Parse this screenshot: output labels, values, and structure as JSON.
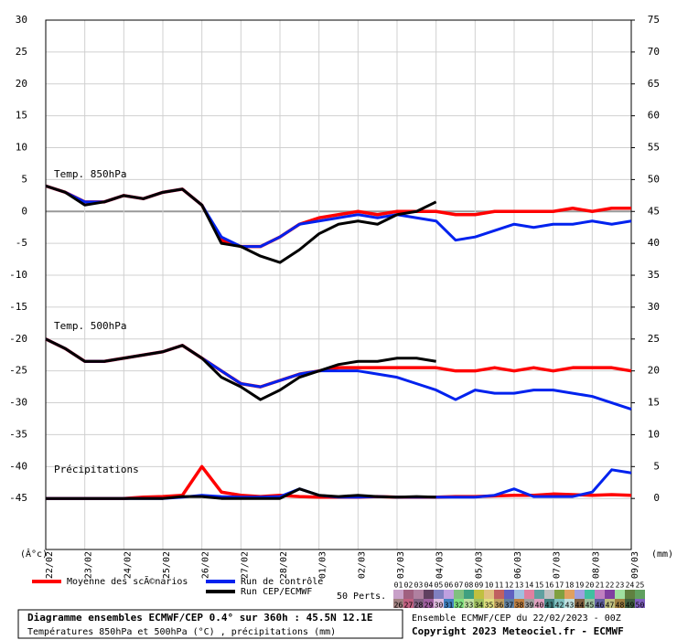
{
  "chart_data": {
    "type": "line",
    "panel_labels": [
      "Temp. 850hPa",
      "Temp. 500hPa",
      "Précipitations"
    ],
    "x": [
      0,
      0.5,
      1,
      1.5,
      2,
      2.5,
      3,
      3.5,
      4,
      4.5,
      5,
      5.5,
      6,
      6.5,
      7,
      7.5,
      8,
      8.5,
      9,
      9.5,
      10,
      10.5,
      11,
      11.5,
      12,
      12.5,
      13,
      13.5,
      14,
      14.5,
      15
    ],
    "xlim": [
      0,
      15
    ],
    "xticks": [
      {
        "value": 0,
        "label": "22/02"
      },
      {
        "value": 1,
        "label": "23/02"
      },
      {
        "value": 2,
        "label": "24/02"
      },
      {
        "value": 3,
        "label": "25/02"
      },
      {
        "value": 4,
        "label": "26/02"
      },
      {
        "value": 5,
        "label": "27/02"
      },
      {
        "value": 6,
        "label": "28/02"
      },
      {
        "value": 7,
        "label": "01/03"
      },
      {
        "value": 8,
        "label": "02/03"
      },
      {
        "value": 9,
        "label": "03/03"
      },
      {
        "value": 10,
        "label": "04/03"
      },
      {
        "value": 11,
        "label": "05/03"
      },
      {
        "value": 12,
        "label": "06/03"
      },
      {
        "value": 13,
        "label": "07/03"
      },
      {
        "value": 14,
        "label": "08/03"
      },
      {
        "value": 15,
        "label": "09/03"
      }
    ],
    "ylim": [
      -53,
      30
    ],
    "yticks": [
      30,
      25,
      20,
      15,
      10,
      5,
      0,
      -5,
      -10,
      -15,
      -20,
      -25,
      -30,
      -35,
      -40,
      -45
    ],
    "y2lim": [
      -8,
      75
    ],
    "y2ticks": [
      75,
      70,
      65,
      60,
      55,
      50,
      45,
      40,
      35,
      30,
      25,
      20,
      15,
      10,
      5,
      0
    ],
    "ylabel": "(Â°c)",
    "y2label": "(mm)",
    "grid": true,
    "series": [
      {
        "name": "Moyenne des scÃ©narios",
        "color": "#ff0000",
        "t850": [
          4,
          3,
          1.5,
          1.5,
          2.5,
          2,
          3,
          3.5,
          1,
          -4.5,
          -5.5,
          -5.5,
          -4,
          -2,
          -1,
          -0.5,
          0,
          -0.5,
          0,
          0,
          0,
          -0.5,
          -0.5,
          0,
          0,
          0,
          0,
          0.5,
          0,
          0.5,
          0.5
        ],
        "t500": [
          -20,
          -21.5,
          -23.5,
          -23.5,
          -23,
          -22.5,
          -22,
          -21,
          -23,
          -25,
          -27,
          -27.5,
          -26.5,
          -25.5,
          -25,
          -24.5,
          -24.5,
          -24.5,
          -24.5,
          -24.5,
          -24.5,
          -25,
          -25,
          -24.5,
          -25,
          -24.5,
          -25,
          -24.5,
          -24.5,
          -24.5,
          -25
        ],
        "precip": [
          0,
          0,
          0,
          0,
          0,
          0.2,
          0.3,
          0.5,
          5,
          1,
          0.5,
          0.3,
          0.5,
          0.3,
          0.2,
          0.2,
          0.2,
          0.3,
          0.2,
          0.2,
          0.2,
          0.3,
          0.3,
          0.4,
          0.5,
          0.5,
          0.7,
          0.6,
          0.5,
          0.6,
          0.5
        ]
      },
      {
        "name": "Run de contrôle",
        "color": "#0022ee",
        "t850": [
          4,
          3,
          1.5,
          1.5,
          2.5,
          2,
          3,
          3.5,
          1,
          -4,
          -5.5,
          -5.5,
          -4,
          -2,
          -1.5,
          -1,
          -0.5,
          -1,
          -0.5,
          -1,
          -1.5,
          -4.5,
          -4,
          -3,
          -2,
          -2.5,
          -2,
          -2,
          -1.5,
          -2,
          -1.5
        ],
        "t500": [
          -20,
          -21.5,
          -23.5,
          -23.5,
          -23,
          -22.5,
          -22,
          -21,
          -23,
          -25,
          -27,
          -27.5,
          -26.5,
          -25.5,
          -25,
          -25,
          -25,
          -25.5,
          -26,
          -27,
          -28,
          -29.5,
          -28,
          -28.5,
          -28.5,
          -28,
          -28,
          -28.5,
          -29,
          -30,
          -31
        ],
        "precip": [
          0,
          0,
          0,
          0,
          0,
          0,
          0,
          0.2,
          0.5,
          0.3,
          0.2,
          0.2,
          0.3,
          1.5,
          0.5,
          0.2,
          0.2,
          0.3,
          0.2,
          0.2,
          0.2,
          0.2,
          0.2,
          0.5,
          1.5,
          0.3,
          0.3,
          0.3,
          1,
          4.5,
          4
        ]
      },
      {
        "name": "Run CEP/ECMWF",
        "color": "#000000",
        "t850": [
          4,
          3,
          1,
          1.5,
          2.5,
          2,
          3,
          3.5,
          1,
          -5,
          -5.5,
          -7,
          -8,
          -6,
          -3.5,
          -2,
          -1.5,
          -2,
          -0.5,
          0,
          1.5,
          null,
          null,
          null,
          null,
          null,
          null,
          null,
          null,
          null,
          null
        ],
        "t500": [
          -20,
          -21.5,
          -23.5,
          -23.5,
          -23,
          -22.5,
          -22,
          -21,
          -23,
          -26,
          -27.5,
          -29.5,
          -28,
          -26,
          -25,
          -24,
          -23.5,
          -23.5,
          -23,
          -23,
          -23.5,
          null,
          null,
          null,
          null,
          null,
          null,
          null,
          null,
          null,
          null
        ],
        "precip": [
          0,
          0,
          0,
          0,
          0,
          0,
          0,
          0.3,
          0.3,
          0,
          0,
          0,
          0,
          1.5,
          0.5,
          0.3,
          0.5,
          0.3,
          0.2,
          0.3,
          0.2,
          null,
          null,
          null,
          null,
          null,
          null,
          null,
          null,
          null,
          null
        ]
      }
    ],
    "perturbations_label": "50 Perts.",
    "perturbations": {
      "labels": [
        "01",
        "02",
        "03",
        "04",
        "05",
        "06",
        "07",
        "08",
        "09",
        "10",
        "11",
        "12",
        "13",
        "14",
        "15",
        "16",
        "17",
        "18",
        "19",
        "20",
        "21",
        "22",
        "23",
        "24",
        "25",
        "26",
        "27",
        "28",
        "29",
        "30",
        "31",
        "32",
        "33",
        "34",
        "35",
        "36",
        "37",
        "38",
        "39",
        "40",
        "41",
        "42",
        "43",
        "44",
        "45",
        "46",
        "47",
        "48",
        "49",
        "50"
      ],
      "colors": [
        "#c8a0c8",
        "#a06080",
        "#b080a0",
        "#604060",
        "#8080c0",
        "#c0a0e0",
        "#80c080",
        "#40a080",
        "#c0c040",
        "#e0c080",
        "#c06060",
        "#6060c0",
        "#a0c0e0",
        "#e080a0",
        "#60a0a0",
        "#c0c0c0",
        "#80a040",
        "#e0a060",
        "#a0a0e0",
        "#40c0a0",
        "#c080c0",
        "#8040a0",
        "#a0e0a0",
        "#608040",
        "#60a060",
        "#a08080",
        "#c06080",
        "#806080",
        "#a060a0",
        "#e0c0e0",
        "#4080c0",
        "#80e080",
        "#c0e0a0",
        "#a0c060",
        "#e0e080",
        "#c0a060",
        "#6080a0",
        "#c08040",
        "#a0a0a0",
        "#e0a0c0",
        "#408080",
        "#80c0c0",
        "#c0e0e0",
        "#806040",
        "#a0c0a0",
        "#6060a0",
        "#c0c080",
        "#a08040",
        "#406040",
        "#8060c0"
      ]
    },
    "footer": {
      "title": "Diagramme ensembles ECMWF/CEP 0.4° sur 360h : 45.5N 12.1E",
      "subtitle": "Températures 850hPa et 500hPa (°C) , précipitations (mm)",
      "run": "Ensemble ECMWF/CEP du 22/02/2023 - 00Z",
      "copyright": "Copyright 2023 Meteociel.fr - ECMWF"
    }
  }
}
